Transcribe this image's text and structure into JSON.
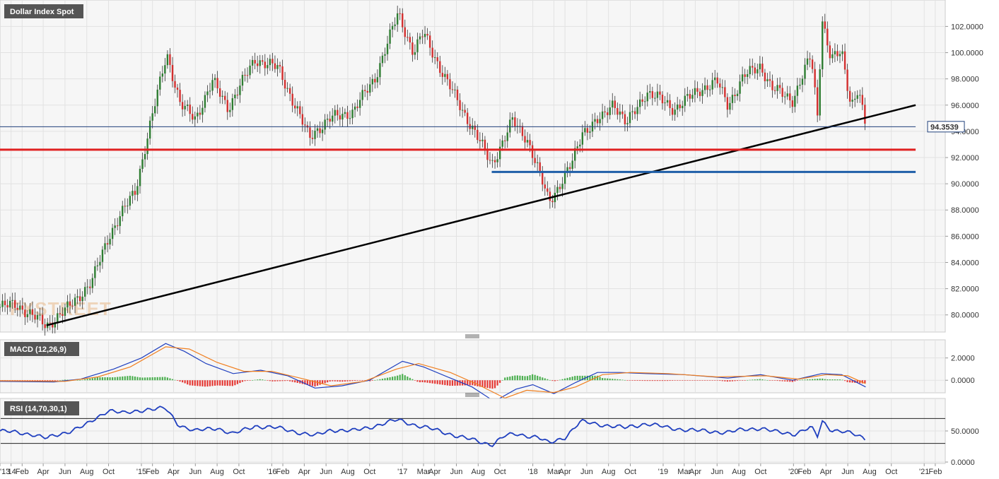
{
  "chart_data": [
    {
      "type": "candlestick",
      "title": "Dollar Index Spot",
      "ylim": [
        78.8,
        103.8
      ],
      "y_ticks": [
        80,
        82,
        84,
        86,
        88,
        90,
        92,
        94,
        96,
        98,
        100,
        102
      ],
      "y_tick_labels": [
        "80.0000",
        "82.0000",
        "84.0000",
        "86.0000",
        "88.0000",
        "90.0000",
        "92.0000",
        "94.0000",
        "96.0000",
        "98.0000",
        "100.0000",
        "102.0000"
      ],
      "last_price": 94.3539,
      "last_price_label": "94.3539",
      "grid": true,
      "colors": {
        "up": "#2e7d32",
        "down": "#d32f2f",
        "background": "#f6f6f6"
      },
      "path": [
        [
          "2013-12-01",
          80.6
        ],
        [
          "2014-01-15",
          80.8
        ],
        [
          "2014-04-10",
          79.2
        ],
        [
          "2014-06-01",
          80.3
        ],
        [
          "2014-08-15",
          82.5
        ],
        [
          "2014-10-01",
          86.0
        ],
        [
          "2014-12-15",
          89.5
        ],
        [
          "2015-03-13",
          100.0
        ],
        [
          "2015-04-20",
          96.0
        ],
        [
          "2015-06-01",
          95.0
        ],
        [
          "2015-07-20",
          97.8
        ],
        [
          "2015-09-01",
          95.8
        ],
        [
          "2015-11-15",
          99.5
        ],
        [
          "2016-01-20",
          98.8
        ],
        [
          "2016-04-15",
          93.5
        ],
        [
          "2016-05-01",
          94.0
        ],
        [
          "2016-06-15",
          95.0
        ],
        [
          "2016-08-15",
          95.5
        ],
        [
          "2016-10-15",
          98.0
        ],
        [
          "2016-12-20",
          103.0
        ],
        [
          "2017-02-01",
          100.0
        ],
        [
          "2017-03-01",
          101.5
        ],
        [
          "2017-05-01",
          98.0
        ],
        [
          "2017-07-01",
          95.0
        ],
        [
          "2017-09-08",
          91.5
        ],
        [
          "2017-10-15",
          93.5
        ],
        [
          "2017-11-05",
          94.8
        ],
        [
          "2017-12-15",
          93.5
        ],
        [
          "2018-02-15",
          88.7
        ],
        [
          "2018-03-15",
          89.8
        ],
        [
          "2018-04-20",
          91.5
        ],
        [
          "2018-05-20",
          94.0
        ],
        [
          "2018-07-15",
          95.0
        ],
        [
          "2018-08-15",
          96.3
        ],
        [
          "2018-09-20",
          94.5
        ],
        [
          "2018-11-15",
          97.0
        ],
        [
          "2018-12-20",
          96.5
        ],
        [
          "2019-02-01",
          95.7
        ],
        [
          "2019-04-15",
          97.2
        ],
        [
          "2019-06-01",
          97.8
        ],
        [
          "2019-07-01",
          96.0
        ],
        [
          "2019-08-15",
          98.2
        ],
        [
          "2019-10-01",
          99.0
        ],
        [
          "2019-11-01",
          97.3
        ],
        [
          "2019-12-30",
          96.4
        ],
        [
          "2020-02-19",
          99.8
        ],
        [
          "2020-03-09",
          95.0
        ],
        [
          "2020-03-20",
          102.8
        ],
        [
          "2020-04-15",
          99.5
        ],
        [
          "2020-05-15",
          100.0
        ],
        [
          "2020-06-10",
          96.0
        ],
        [
          "2020-06-30",
          97.3
        ],
        [
          "2020-07-21",
          94.35
        ]
      ],
      "overlays": [
        {
          "kind": "trendline",
          "color": "#000000",
          "points": [
            [
              "2014-04-10",
              79.2
            ],
            [
              "2020-12-08",
              96.0
            ]
          ]
        },
        {
          "kind": "hline",
          "color": "#e02020",
          "y": 92.6,
          "from": "2013-12-01",
          "to": "2020-12-08"
        },
        {
          "kind": "hline",
          "color": "#1f5fa8",
          "y": 90.9,
          "from": "2017-09-08",
          "to": "2020-12-08"
        },
        {
          "kind": "hline",
          "color": "#1f3f7a",
          "y": 94.3539,
          "from": "2013-12-01",
          "to": "2020-12-08"
        }
      ],
      "watermark": "FXSTREET"
    },
    {
      "type": "line",
      "title": "MACD (12,26,9)",
      "ylim": [
        -1.0,
        3.5
      ],
      "y_ticks": [
        0,
        2
      ],
      "y_tick_labels": [
        "0.0000",
        "2.0000"
      ],
      "series": [
        {
          "role": "macd",
          "color": "#1f3fbf",
          "points": [
            [
              "2013-12-01",
              -0.1
            ],
            [
              "2014-05-01",
              -0.15
            ],
            [
              "2014-07-15",
              0.1
            ],
            [
              "2014-10-15",
              1.0
            ],
            [
              "2015-01-01",
              2.0
            ],
            [
              "2015-03-10",
              3.3
            ],
            [
              "2015-05-01",
              2.6
            ],
            [
              "2015-07-01",
              1.5
            ],
            [
              "2015-09-15",
              0.6
            ],
            [
              "2015-12-01",
              0.9
            ],
            [
              "2016-02-15",
              0.4
            ],
            [
              "2016-05-01",
              -0.7
            ],
            [
              "2016-07-15",
              -0.5
            ],
            [
              "2016-10-01",
              0.0
            ],
            [
              "2017-01-01",
              1.7
            ],
            [
              "2017-03-01",
              1.2
            ],
            [
              "2017-05-15",
              0.2
            ],
            [
              "2017-07-15",
              -0.6
            ],
            [
              "2017-09-15",
              -1.9
            ],
            [
              "2017-11-15",
              -0.8
            ],
            [
              "2018-01-01",
              -0.4
            ],
            [
              "2018-03-01",
              -1.2
            ],
            [
              "2018-05-01",
              -0.2
            ],
            [
              "2018-07-01",
              0.7
            ],
            [
              "2018-09-01",
              0.7
            ],
            [
              "2018-11-15",
              0.6
            ],
            [
              "2019-03-01",
              0.5
            ],
            [
              "2019-07-01",
              0.2
            ],
            [
              "2019-10-01",
              0.5
            ],
            [
              "2019-12-30",
              0.0
            ],
            [
              "2020-03-20",
              0.6
            ],
            [
              "2020-05-15",
              0.5
            ],
            [
              "2020-07-21",
              -0.6
            ]
          ]
        },
        {
          "role": "signal",
          "color": "#f07f1f",
          "points": [
            [
              "2013-12-01",
              -0.05
            ],
            [
              "2014-06-01",
              -0.1
            ],
            [
              "2014-09-01",
              0.3
            ],
            [
              "2014-12-01",
              1.2
            ],
            [
              "2015-03-10",
              3.0
            ],
            [
              "2015-05-15",
              2.8
            ],
            [
              "2015-08-01",
              1.6
            ],
            [
              "2015-10-15",
              0.8
            ],
            [
              "2016-01-01",
              0.8
            ],
            [
              "2016-04-01",
              0.1
            ],
            [
              "2016-06-15",
              -0.5
            ],
            [
              "2016-09-15",
              -0.1
            ],
            [
              "2016-12-15",
              1.0
            ],
            [
              "2017-02-15",
              1.5
            ],
            [
              "2017-05-15",
              0.7
            ],
            [
              "2017-08-01",
              -0.4
            ],
            [
              "2017-10-15",
              -1.6
            ],
            [
              "2017-12-15",
              -0.9
            ],
            [
              "2018-03-01",
              -1.1
            ],
            [
              "2018-05-01",
              -0.6
            ],
            [
              "2018-07-15",
              0.5
            ],
            [
              "2018-10-01",
              0.7
            ],
            [
              "2019-01-15",
              0.6
            ],
            [
              "2019-06-01",
              0.3
            ],
            [
              "2019-10-15",
              0.4
            ],
            [
              "2020-01-15",
              0.1
            ],
            [
              "2020-04-01",
              0.5
            ],
            [
              "2020-06-01",
              0.4
            ],
            [
              "2020-07-21",
              -0.3
            ]
          ]
        }
      ],
      "histogram_colors": {
        "positive": "#4caf50",
        "negative": "#e53935"
      }
    },
    {
      "type": "line",
      "title": "RSI (14,70,30,1)",
      "ylim": [
        0,
        100
      ],
      "y_ticks": [
        0,
        50
      ],
      "y_tick_labels": [
        "0.0000",
        "50.0000"
      ],
      "levels": [
        70,
        30
      ],
      "series": [
        {
          "role": "rsi",
          "color": "#1f3fbf",
          "points": [
            [
              "2013-12-01",
              50
            ],
            [
              "2014-03-01",
              45
            ],
            [
              "2014-04-10",
              38
            ],
            [
              "2014-06-15",
              50
            ],
            [
              "2014-08-01",
              60
            ],
            [
              "2014-10-01",
              84
            ],
            [
              "2014-11-15",
              78
            ],
            [
              "2015-01-15",
              85
            ],
            [
              "2015-03-10",
              86
            ],
            [
              "2015-04-15",
              60
            ],
            [
              "2015-06-01",
              50
            ],
            [
              "2015-08-01",
              55
            ],
            [
              "2015-09-15",
              45
            ],
            [
              "2015-11-15",
              58
            ],
            [
              "2016-01-15",
              55
            ],
            [
              "2016-03-15",
              48
            ],
            [
              "2016-05-01",
              42
            ],
            [
              "2016-06-15",
              52
            ],
            [
              "2016-08-15",
              50
            ],
            [
              "2016-10-15",
              58
            ],
            [
              "2016-12-20",
              68
            ],
            [
              "2017-02-15",
              58
            ],
            [
              "2017-04-15",
              50
            ],
            [
              "2017-06-15",
              40
            ],
            [
              "2017-09-08",
              28
            ],
            [
              "2017-10-15",
              42
            ],
            [
              "2017-11-15",
              45
            ],
            [
              "2018-01-15",
              40
            ],
            [
              "2018-02-15",
              30
            ],
            [
              "2018-04-01",
              40
            ],
            [
              "2018-05-15",
              65
            ],
            [
              "2018-07-15",
              60
            ],
            [
              "2018-09-15",
              55
            ],
            [
              "2018-11-15",
              62
            ],
            [
              "2019-01-15",
              55
            ],
            [
              "2019-04-15",
              50
            ],
            [
              "2019-07-01",
              48
            ],
            [
              "2019-08-15",
              52
            ],
            [
              "2019-10-01",
              55
            ],
            [
              "2019-11-15",
              48
            ],
            [
              "2020-01-01",
              45
            ],
            [
              "2020-02-19",
              56
            ],
            [
              "2020-03-09",
              40
            ],
            [
              "2020-03-20",
              66
            ],
            [
              "2020-04-15",
              52
            ],
            [
              "2020-05-15",
              50
            ],
            [
              "2020-06-15",
              45
            ],
            [
              "2020-07-21",
              37
            ]
          ]
        }
      ]
    }
  ],
  "x_axis": {
    "ticks": [
      {
        "date": "2013-12-01",
        "label": "'13"
      },
      {
        "date": "2014-01-01",
        "label": "'14"
      },
      {
        "date": "2014-02-01",
        "label": "Feb"
      },
      {
        "date": "2014-04-01",
        "label": "Apr"
      },
      {
        "date": "2014-06-01",
        "label": "Jun"
      },
      {
        "date": "2014-08-01",
        "label": "Aug"
      },
      {
        "date": "2014-10-01",
        "label": "Oct"
      },
      {
        "date": "2015-01-01",
        "label": "'15"
      },
      {
        "date": "2015-02-01",
        "label": "Feb"
      },
      {
        "date": "2015-04-01",
        "label": "Apr"
      },
      {
        "date": "2015-06-01",
        "label": "Jun"
      },
      {
        "date": "2015-08-01",
        "label": "Aug"
      },
      {
        "date": "2015-10-01",
        "label": "Oct"
      },
      {
        "date": "2016-01-01",
        "label": "'16"
      },
      {
        "date": "2016-02-01",
        "label": "Feb"
      },
      {
        "date": "2016-04-01",
        "label": "Apr"
      },
      {
        "date": "2016-06-01",
        "label": "Jun"
      },
      {
        "date": "2016-08-01",
        "label": "Aug"
      },
      {
        "date": "2016-10-01",
        "label": "Oct"
      },
      {
        "date": "2017-01-01",
        "label": "'17"
      },
      {
        "date": "2017-03-01",
        "label": "Mar"
      },
      {
        "date": "2017-04-01",
        "label": "Apr"
      },
      {
        "date": "2017-06-01",
        "label": "Jun"
      },
      {
        "date": "2017-08-01",
        "label": "Aug"
      },
      {
        "date": "2017-10-01",
        "label": "Oct"
      },
      {
        "date": "2018-01-01",
        "label": "'18"
      },
      {
        "date": "2018-03-01",
        "label": "Mar"
      },
      {
        "date": "2018-04-01",
        "label": "Apr"
      },
      {
        "date": "2018-06-01",
        "label": "Jun"
      },
      {
        "date": "2018-08-01",
        "label": "Aug"
      },
      {
        "date": "2018-10-01",
        "label": "Oct"
      },
      {
        "date": "2019-01-01",
        "label": "'19"
      },
      {
        "date": "2019-03-01",
        "label": "Mar"
      },
      {
        "date": "2019-04-01",
        "label": "Apr"
      },
      {
        "date": "2019-06-01",
        "label": "Jun"
      },
      {
        "date": "2019-08-01",
        "label": "Aug"
      },
      {
        "date": "2019-10-01",
        "label": "Oct"
      },
      {
        "date": "2020-01-01",
        "label": "'20"
      },
      {
        "date": "2020-02-01",
        "label": "Feb"
      },
      {
        "date": "2020-04-01",
        "label": "Apr"
      },
      {
        "date": "2020-06-01",
        "label": "Jun"
      },
      {
        "date": "2020-08-01",
        "label": "Aug"
      },
      {
        "date": "2020-10-01",
        "label": "Oct"
      },
      {
        "date": "2021-01-01",
        "label": "'21"
      },
      {
        "date": "2021-02-01",
        "label": "Feb"
      }
    ]
  }
}
